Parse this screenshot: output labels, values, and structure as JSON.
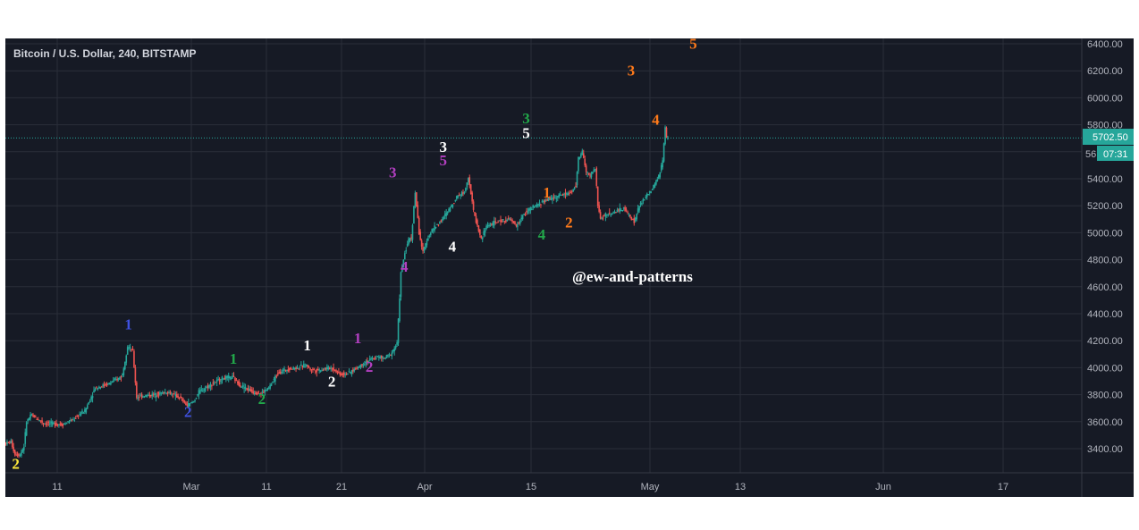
{
  "chart_data": {
    "type": "candlestick",
    "title": "Bitcoin / U.S. Dollar, 240, BITSTAMP",
    "ylim": [
      3240,
      6420
    ],
    "y_ticks": [
      3400,
      3600,
      3800,
      4000,
      4200,
      4400,
      4600,
      4800,
      5000,
      5200,
      5400,
      5600,
      5800,
      6000,
      6200,
      6400
    ],
    "y_tick_labels": [
      "3400.00",
      "3600.00",
      "3800.00",
      "4000.00",
      "4200.00",
      "4400.00",
      "4600.00",
      "4800.00",
      "5000.00",
      "5200.00",
      "5400.00",
      "",
      "5800.00",
      "6000.00",
      "6200.00",
      "6400.00"
    ],
    "x_ticks": [
      "11",
      "Mar",
      "11",
      "21",
      "Apr",
      "15",
      "May",
      "13",
      "Jun",
      "17"
    ],
    "current_price": 5702.5,
    "current_price_label": "5702.50",
    "countdown_label": "07:31",
    "price_path": [
      [
        0,
        3440
      ],
      [
        5,
        3450
      ],
      [
        8,
        3360
      ],
      [
        12,
        3355
      ],
      [
        15,
        3420
      ],
      [
        17,
        3600
      ],
      [
        21,
        3650
      ],
      [
        30,
        3590
      ],
      [
        45,
        3580
      ],
      [
        54,
        3620
      ],
      [
        57,
        3650
      ],
      [
        62,
        3680
      ],
      [
        70,
        3850
      ],
      [
        80,
        3880
      ],
      [
        88,
        3920
      ],
      [
        91,
        3950
      ],
      [
        95,
        4160
      ],
      [
        99,
        4120
      ],
      [
        102,
        3780
      ],
      [
        106,
        3790
      ],
      [
        115,
        3800
      ],
      [
        125,
        3820
      ],
      [
        135,
        3780
      ],
      [
        141,
        3720
      ],
      [
        146,
        3750
      ],
      [
        150,
        3820
      ],
      [
        160,
        3880
      ],
      [
        168,
        3920
      ],
      [
        176,
        3930
      ],
      [
        182,
        3870
      ],
      [
        192,
        3820
      ],
      [
        198,
        3810
      ],
      [
        204,
        3850
      ],
      [
        211,
        3960
      ],
      [
        218,
        3990
      ],
      [
        226,
        4000
      ],
      [
        233,
        4020
      ],
      [
        236,
        3990
      ],
      [
        241,
        3980
      ],
      [
        252,
        4000
      ],
      [
        260,
        3950
      ],
      [
        266,
        3960
      ],
      [
        272,
        4000
      ],
      [
        280,
        4050
      ],
      [
        288,
        4080
      ],
      [
        293,
        4070
      ],
      [
        298,
        4100
      ],
      [
        303,
        4180
      ],
      [
        306,
        4700
      ],
      [
        309,
        4850
      ],
      [
        312,
        4950
      ],
      [
        314,
        4960
      ],
      [
        317,
        5300
      ],
      [
        320,
        5000
      ],
      [
        323,
        4850
      ],
      [
        326,
        4950
      ],
      [
        330,
        5020
      ],
      [
        338,
        5100
      ],
      [
        345,
        5200
      ],
      [
        350,
        5280
      ],
      [
        355,
        5300
      ],
      [
        358,
        5420
      ],
      [
        362,
        5160
      ],
      [
        365,
        5050
      ],
      [
        368,
        4950
      ],
      [
        372,
        5050
      ],
      [
        380,
        5080
      ],
      [
        390,
        5100
      ],
      [
        395,
        5050
      ],
      [
        402,
        5150
      ],
      [
        410,
        5200
      ],
      [
        420,
        5250
      ],
      [
        430,
        5280
      ],
      [
        438,
        5300
      ],
      [
        441,
        5350
      ],
      [
        443,
        5550
      ],
      [
        446,
        5600
      ],
      [
        449,
        5450
      ],
      [
        452,
        5420
      ],
      [
        456,
        5480
      ],
      [
        458,
        5200
      ],
      [
        460,
        5100
      ],
      [
        463,
        5130
      ],
      [
        470,
        5150
      ],
      [
        478,
        5180
      ],
      [
        483,
        5120
      ],
      [
        486,
        5080
      ],
      [
        490,
        5200
      ],
      [
        496,
        5280
      ],
      [
        500,
        5320
      ],
      [
        505,
        5420
      ],
      [
        508,
        5530
      ],
      [
        510,
        5780
      ],
      [
        511,
        5702.5
      ]
    ],
    "wave_labels": [
      {
        "text": "2",
        "t": 8,
        "price": 3250,
        "color": "#ffeb3b"
      },
      {
        "text": "1",
        "t": 95,
        "price": 4285,
        "color": "#3f51e0"
      },
      {
        "text": "2",
        "t": 141,
        "price": 3635,
        "color": "#3f51e0"
      },
      {
        "text": "1",
        "t": 176,
        "price": 4030,
        "color": "#22a84a"
      },
      {
        "text": "2",
        "t": 198,
        "price": 3730,
        "color": "#22a84a"
      },
      {
        "text": "1",
        "t": 233,
        "price": 4130,
        "color": "#ffffff"
      },
      {
        "text": "2",
        "t": 252,
        "price": 3860,
        "color": "#ffffff"
      },
      {
        "text": "1",
        "t": 272,
        "price": 4180,
        "color": "#b23fc0"
      },
      {
        "text": "2",
        "t": 281,
        "price": 3970,
        "color": "#b23fc0"
      },
      {
        "text": "3",
        "t": 299,
        "price": 5410,
        "color": "#b23fc0"
      },
      {
        "text": "4",
        "t": 308,
        "price": 4710,
        "color": "#b23fc0"
      },
      {
        "text": "3",
        "t": 338,
        "price": 5600,
        "color": "#ffffff"
      },
      {
        "text": "5",
        "t": 338,
        "price": 5500,
        "color": "#b23fc0"
      },
      {
        "text": "4",
        "t": 345,
        "price": 4860,
        "color": "#ffffff"
      },
      {
        "text": "3",
        "t": 402,
        "price": 5810,
        "color": "#22a84a"
      },
      {
        "text": "5",
        "t": 402,
        "price": 5700,
        "color": "#ffffff"
      },
      {
        "text": "1",
        "t": 418,
        "price": 5260,
        "color": "#ff7a1a"
      },
      {
        "text": "4",
        "t": 414,
        "price": 4950,
        "color": "#22a84a"
      },
      {
        "text": "2",
        "t": 435,
        "price": 5040,
        "color": "#ff7a1a"
      },
      {
        "text": "3",
        "t": 483,
        "price": 6165,
        "color": "#ff7a1a"
      },
      {
        "text": "4",
        "t": 502,
        "price": 5800,
        "color": "#ff7a1a"
      },
      {
        "text": "5",
        "t": 531,
        "price": 6365,
        "color": "#ff7a1a"
      }
    ],
    "watermark": "@ew-and-patterns",
    "colors": {
      "background": "#161a25",
      "grid": "#2a2e39",
      "up": "#26a69a",
      "down": "#ef5350",
      "price_line": "#26a69a",
      "axis_text": "#b2b5be"
    }
  }
}
